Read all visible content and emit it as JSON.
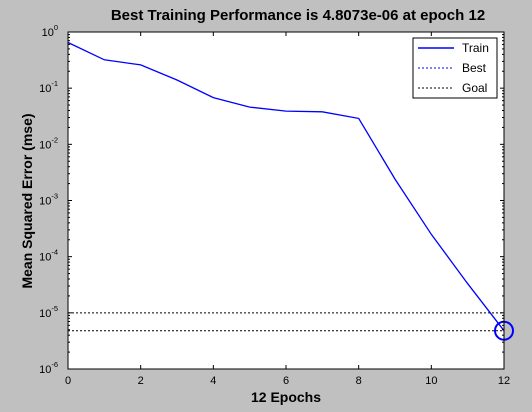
{
  "chart_data": {
    "type": "line",
    "title": "Best Training Performance is 4.8073e-06 at epoch 12",
    "xlabel": "12 Epochs",
    "ylabel": "Mean Squared Error  (mse)",
    "xlim": [
      0,
      12
    ],
    "ylim": [
      1e-06,
      1
    ],
    "yscale": "log",
    "grid": false,
    "legend_position": "top-right",
    "xticks": [
      0,
      2,
      4,
      6,
      8,
      10,
      12
    ],
    "yticks": [
      {
        "base": "10",
        "exp": "0"
      },
      {
        "base": "10",
        "exp": "-1"
      },
      {
        "base": "10",
        "exp": "-2"
      },
      {
        "base": "10",
        "exp": "-3"
      },
      {
        "base": "10",
        "exp": "-4"
      },
      {
        "base": "10",
        "exp": "-5"
      },
      {
        "base": "10",
        "exp": "-6"
      }
    ],
    "series": [
      {
        "name": "Train",
        "style": "solid",
        "color": "#0000ff",
        "x": [
          0,
          1,
          2,
          3,
          4,
          5,
          6,
          7,
          8,
          9,
          10,
          11,
          12
        ],
        "y": [
          0.65,
          0.32,
          0.26,
          0.14,
          0.068,
          0.046,
          0.039,
          0.038,
          0.029,
          0.0024,
          0.00025,
          3.3e-05,
          4.8073e-06
        ]
      },
      {
        "name": "Best",
        "style": "dotted",
        "color": "#0000ff",
        "points": [
          {
            "x": 12,
            "y": 1
          },
          {
            "x": 12,
            "y": 1e-06
          }
        ],
        "horizontal_y": 4.8073e-06,
        "marker": {
          "x": 12,
          "y": 4.8073e-06,
          "shape": "circle"
        }
      },
      {
        "name": "Goal",
        "style": "dotted",
        "color": "#000000",
        "y_constant": 1e-05
      }
    ]
  }
}
